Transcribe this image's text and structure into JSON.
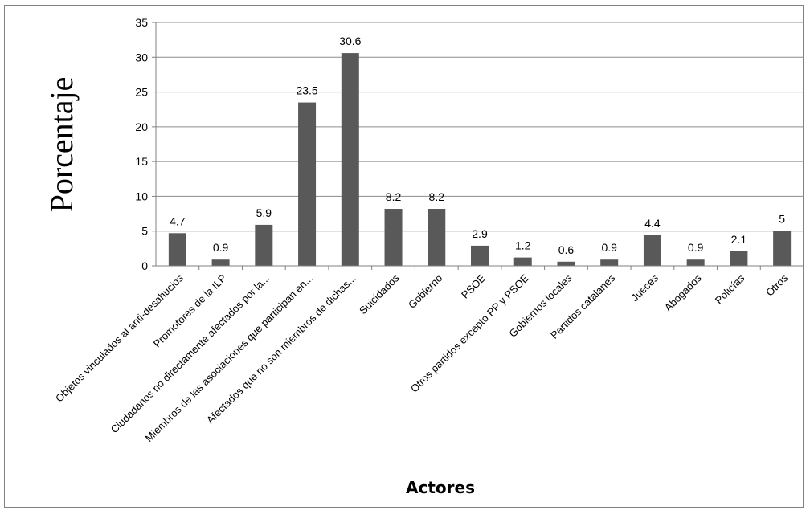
{
  "chart_data": {
    "type": "bar",
    "title": "",
    "xlabel": "Actores",
    "ylabel": "Porcentaje",
    "ylim": [
      0,
      35
    ],
    "yticks": [
      0,
      5,
      10,
      15,
      20,
      25,
      30,
      35
    ],
    "grid": true,
    "legend": "none",
    "bar_color": "#595959",
    "categories": [
      "Objetos vinculados al anti-desahucios",
      "Promotores de la ILP",
      "Ciudadanos no directamente afectados por la...",
      "Miembros de las asociaciones que participan en...",
      "Afectados que no son miembros de dichas...",
      "Suicidados",
      "Gobierno",
      "PSOE",
      "Otros partidos excepto PP y PSOE",
      "Gobiernos locales",
      "Partidos catalanes",
      "Jueces",
      "Abogados",
      "Policías",
      "Otros"
    ],
    "values": [
      4.7,
      0.9,
      5.9,
      23.5,
      30.6,
      8.2,
      8.2,
      2.9,
      1.2,
      0.6,
      0.9,
      4.4,
      0.9,
      2.1,
      5
    ],
    "data_labels": [
      "4.7",
      "0.9",
      "5.9",
      "23.5",
      "30.6",
      "8.2",
      "8.2",
      "2.9",
      "1.2",
      "0.6",
      "0.9",
      "4.4",
      "0.9",
      "2.1",
      "5"
    ]
  }
}
